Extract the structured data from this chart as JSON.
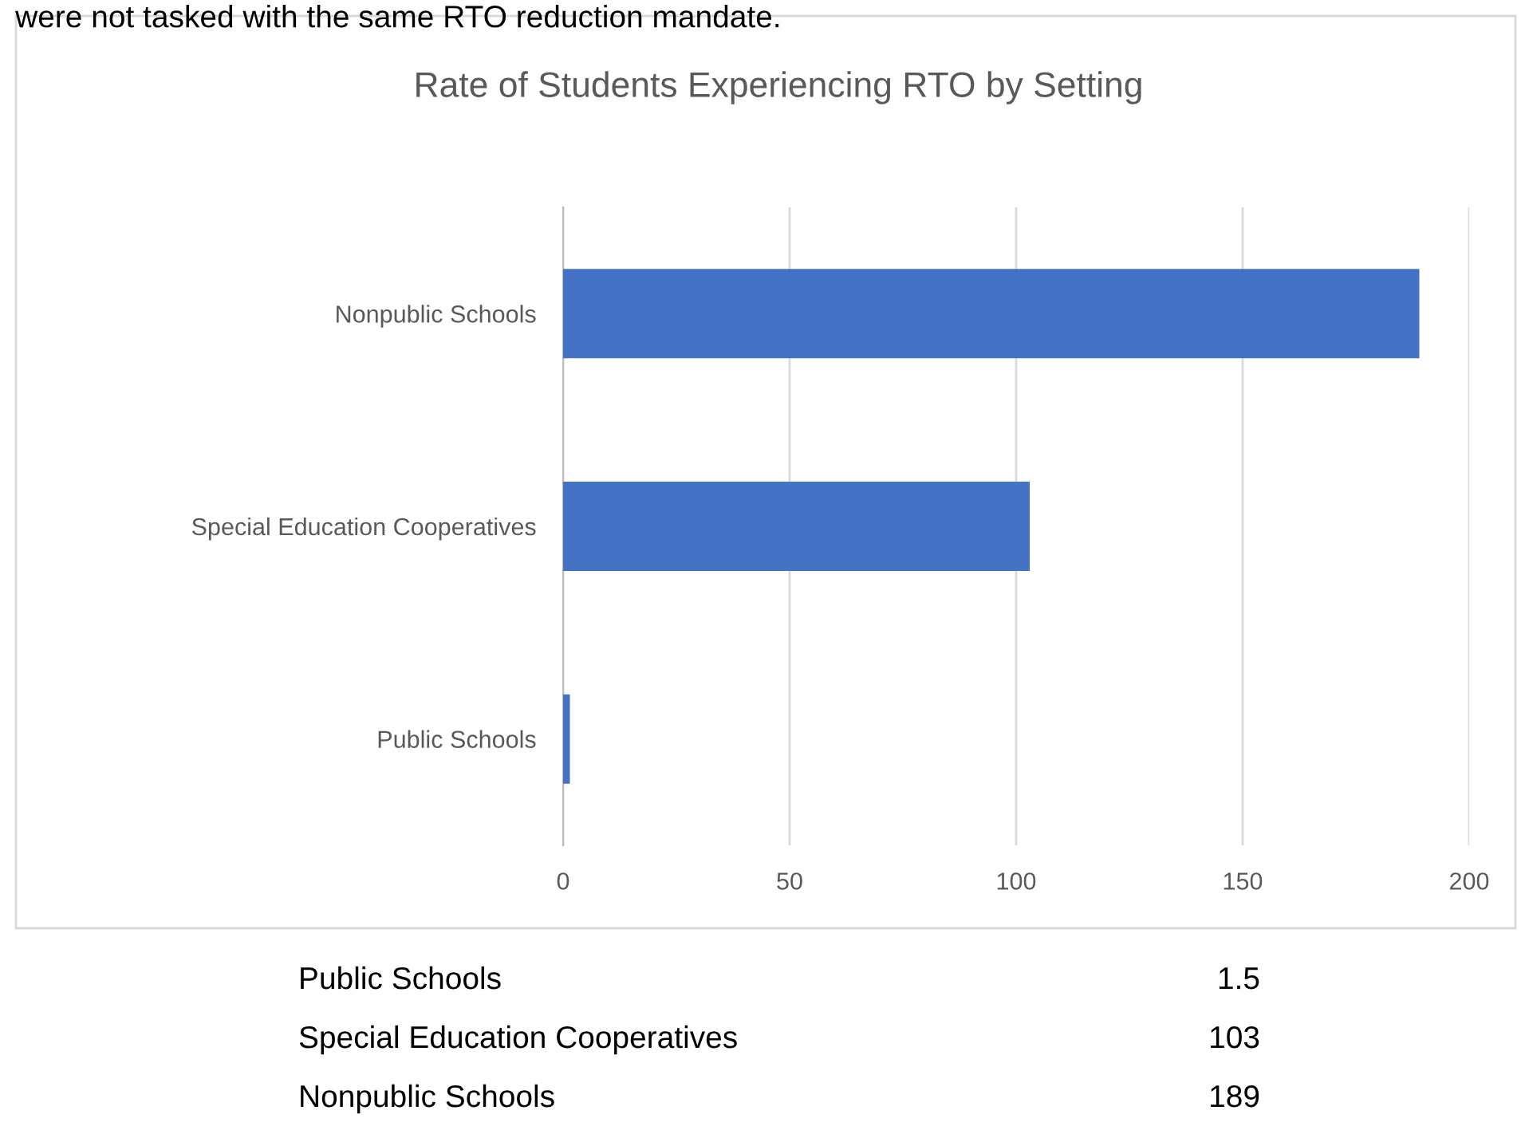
{
  "chart_data": {
    "type": "bar",
    "orientation": "horizontal",
    "title": "Rate of Students Experiencing RTO by Setting",
    "categories": [
      "Nonpublic Schools",
      "Special Education Cooperatives",
      "Public Schools"
    ],
    "values": [
      189,
      103,
      1.5
    ],
    "color": "#4472c4",
    "xlim": [
      0,
      200
    ],
    "xticks": [
      0,
      50,
      100,
      150,
      200
    ],
    "grid": "x",
    "annotations": [
      "were not tasked with the same RTO reduction mandate.",
      "Public Schools",
      "1.5",
      "Special Education Cooperatives",
      "103",
      "Nonpublic Schools",
      "189"
    ]
  }
}
